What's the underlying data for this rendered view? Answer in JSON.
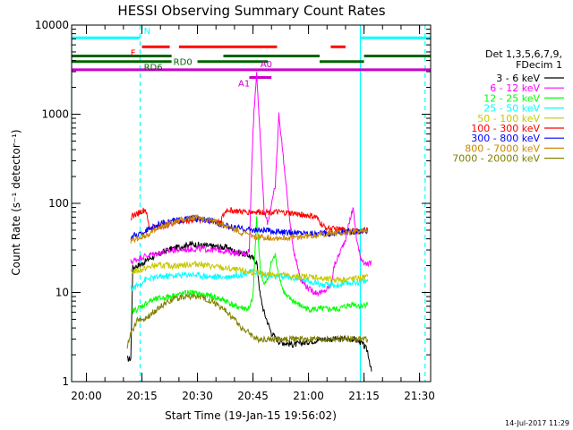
{
  "chart_data": {
    "type": "line",
    "title": "HESSI Observing Summary Count Rates",
    "xlabel": "Start Time (19-Jan-15 19:56:02)",
    "ylabel": "Count Rate (s⁻¹ detector⁻¹)",
    "yscale": "log",
    "ylim": [
      1,
      10000
    ],
    "xlim_minutes": [
      -4,
      93
    ],
    "y_ticks": [
      {
        "v": 1,
        "label": "1"
      },
      {
        "v": 10,
        "label": "10"
      },
      {
        "v": 100,
        "label": "100"
      },
      {
        "v": 1000,
        "label": "1000"
      },
      {
        "v": 10000,
        "label": "10000"
      }
    ],
    "x_ticks": [
      {
        "m": 0,
        "label": "20:00"
      },
      {
        "m": 15,
        "label": "20:15"
      },
      {
        "m": 30,
        "label": "20:30"
      },
      {
        "m": 45,
        "label": "20:45"
      },
      {
        "m": 60,
        "label": "21:00"
      },
      {
        "m": 75,
        "label": "21:15"
      },
      {
        "m": 90,
        "label": "21:30"
      }
    ],
    "timestamp": "14-Jul-2017 11:29",
    "legend": {
      "placement": "right",
      "title_lines": [
        "Det 1,3,5,6,7,9,",
        "FDecim 1"
      ]
    },
    "series": [
      {
        "name": "3 - 6 keV",
        "color": "#000000",
        "points": [
          [
            11,
            1.8
          ],
          [
            12,
            1.8
          ],
          [
            12.5,
            19
          ],
          [
            15,
            21
          ],
          [
            17,
            24
          ],
          [
            22,
            30
          ],
          [
            28,
            35
          ],
          [
            34,
            33
          ],
          [
            38,
            32
          ],
          [
            40,
            29
          ],
          [
            44,
            26
          ],
          [
            46,
            22
          ],
          [
            47,
            9
          ],
          [
            48,
            6
          ],
          [
            50,
            3.5
          ],
          [
            52,
            2.8
          ],
          [
            54,
            2.7
          ],
          [
            56,
            2.6
          ],
          [
            58,
            2.7
          ],
          [
            60,
            2.8
          ],
          [
            62,
            2.9
          ],
          [
            64,
            3.0
          ],
          [
            68,
            3.0
          ],
          [
            72,
            3.0
          ],
          [
            74,
            2.8
          ],
          [
            75,
            2.5
          ],
          [
            76,
            2.2
          ],
          [
            77,
            1.3
          ]
        ]
      },
      {
        "name": "6 - 12 keV",
        "color": "#ff00ff",
        "points": [
          [
            12,
            22
          ],
          [
            15,
            25
          ],
          [
            18,
            27
          ],
          [
            24,
            30
          ],
          [
            30,
            31
          ],
          [
            36,
            30
          ],
          [
            40,
            28
          ],
          [
            43,
            27
          ],
          [
            44,
            30
          ],
          [
            45,
            700
          ],
          [
            46,
            3000
          ],
          [
            47,
            500
          ],
          [
            48,
            80
          ],
          [
            49,
            60
          ],
          [
            50,
            100
          ],
          [
            51,
            150
          ],
          [
            52,
            1000
          ],
          [
            53,
            400
          ],
          [
            54,
            150
          ],
          [
            55,
            60
          ],
          [
            56,
            30
          ],
          [
            57,
            20
          ],
          [
            58,
            14
          ],
          [
            60,
            11
          ],
          [
            62,
            10
          ],
          [
            64,
            10
          ],
          [
            66,
            12
          ],
          [
            67,
            20
          ],
          [
            68,
            25
          ],
          [
            70,
            40
          ],
          [
            72,
            90
          ],
          [
            73,
            40
          ],
          [
            74,
            25
          ],
          [
            75,
            22
          ],
          [
            76,
            20
          ],
          [
            77,
            22
          ]
        ]
      },
      {
        "name": "12 - 25 keV",
        "color": "#00ff00",
        "points": [
          [
            12,
            6
          ],
          [
            15,
            7
          ],
          [
            17,
            8
          ],
          [
            22,
            9
          ],
          [
            28,
            10
          ],
          [
            34,
            9
          ],
          [
            38,
            8
          ],
          [
            40,
            7
          ],
          [
            44,
            6.5
          ],
          [
            45,
            9
          ],
          [
            46,
            70
          ],
          [
            47,
            18
          ],
          [
            48,
            12
          ],
          [
            49,
            14
          ],
          [
            50,
            22
          ],
          [
            51,
            26
          ],
          [
            52,
            16
          ],
          [
            53,
            11
          ],
          [
            54,
            9
          ],
          [
            56,
            8
          ],
          [
            58,
            7
          ],
          [
            60,
            6.5
          ],
          [
            64,
            6.5
          ],
          [
            68,
            6.5
          ],
          [
            72,
            7.5
          ],
          [
            74,
            7
          ],
          [
            76,
            7.5
          ]
        ]
      },
      {
        "name": "25 - 50 keV",
        "color": "#00ffff",
        "points": [
          [
            12,
            11
          ],
          [
            14,
            12
          ],
          [
            16,
            14
          ],
          [
            20,
            15
          ],
          [
            28,
            16
          ],
          [
            34,
            15
          ],
          [
            38,
            15
          ],
          [
            42,
            16
          ],
          [
            44,
            17
          ],
          [
            46,
            17
          ],
          [
            48,
            16
          ],
          [
            50,
            15
          ],
          [
            54,
            15
          ],
          [
            58,
            14
          ],
          [
            62,
            13
          ],
          [
            64,
            12
          ],
          [
            68,
            12
          ],
          [
            72,
            13
          ],
          [
            74,
            13
          ],
          [
            76,
            13.5
          ]
        ]
      },
      {
        "name": "50 - 100 keV",
        "color": "#c8c800",
        "points": [
          [
            12,
            17
          ],
          [
            15,
            18
          ],
          [
            18,
            20
          ],
          [
            24,
            20
          ],
          [
            30,
            21
          ],
          [
            36,
            19
          ],
          [
            40,
            18
          ],
          [
            44,
            17
          ],
          [
            48,
            16
          ],
          [
            52,
            16
          ],
          [
            56,
            15
          ],
          [
            60,
            15
          ],
          [
            62,
            15
          ],
          [
            64,
            14
          ],
          [
            66,
            14
          ],
          [
            70,
            14
          ],
          [
            74,
            14.5
          ],
          [
            76,
            15
          ]
        ]
      },
      {
        "name": "100 - 300 keV",
        "color": "#ff0000",
        "points": [
          [
            12,
            70
          ],
          [
            14,
            78
          ],
          [
            16,
            85
          ],
          [
            17,
            52
          ],
          [
            20,
            55
          ],
          [
            25,
            62
          ],
          [
            30,
            66
          ],
          [
            36,
            62
          ],
          [
            38,
            85
          ],
          [
            42,
            80
          ],
          [
            46,
            80
          ],
          [
            50,
            80
          ],
          [
            54,
            78
          ],
          [
            58,
            75
          ],
          [
            62,
            70
          ],
          [
            64,
            55
          ],
          [
            66,
            52
          ],
          [
            70,
            50
          ],
          [
            74,
            48
          ],
          [
            76,
            52
          ]
        ]
      },
      {
        "name": "300 - 800 keV",
        "color": "#0000ff",
        "points": [
          [
            12,
            42
          ],
          [
            15,
            46
          ],
          [
            18,
            55
          ],
          [
            22,
            62
          ],
          [
            28,
            68
          ],
          [
            34,
            64
          ],
          [
            38,
            55
          ],
          [
            42,
            52
          ],
          [
            46,
            50
          ],
          [
            50,
            49
          ],
          [
            54,
            47
          ],
          [
            58,
            47
          ],
          [
            62,
            46
          ],
          [
            66,
            46
          ],
          [
            70,
            48
          ],
          [
            74,
            49
          ],
          [
            76,
            50
          ]
        ]
      },
      {
        "name": "800 - 7000 keV",
        "color": "#cc8800",
        "points": [
          [
            12,
            38
          ],
          [
            15,
            42
          ],
          [
            18,
            48
          ],
          [
            22,
            58
          ],
          [
            26,
            66
          ],
          [
            30,
            70
          ],
          [
            34,
            64
          ],
          [
            38,
            55
          ],
          [
            42,
            47
          ],
          [
            46,
            42
          ],
          [
            50,
            41
          ],
          [
            54,
            41
          ],
          [
            58,
            42
          ],
          [
            62,
            44
          ],
          [
            66,
            46
          ],
          [
            70,
            47
          ],
          [
            74,
            48
          ],
          [
            76,
            50
          ]
        ]
      },
      {
        "name": "7000 - 20000 keV",
        "color": "#808000",
        "points": [
          [
            11,
            2.5
          ],
          [
            12,
            3.5
          ],
          [
            14,
            5
          ],
          [
            16,
            5
          ],
          [
            18,
            6
          ],
          [
            22,
            8
          ],
          [
            26,
            9
          ],
          [
            30,
            9
          ],
          [
            34,
            8
          ],
          [
            38,
            6
          ],
          [
            40,
            5
          ],
          [
            42,
            4
          ],
          [
            44,
            3.5
          ],
          [
            46,
            3
          ],
          [
            48,
            3
          ],
          [
            52,
            3
          ],
          [
            56,
            3
          ],
          [
            60,
            3
          ],
          [
            64,
            3
          ],
          [
            68,
            3
          ],
          [
            72,
            3
          ],
          [
            74,
            3
          ],
          [
            76,
            3
          ]
        ]
      }
    ],
    "flag_bars": [
      {
        "label": "N",
        "color": "#00ffff",
        "y": 7200,
        "segments": [
          [
            -4,
            14.5
          ],
          [
            74,
            93
          ]
        ]
      },
      {
        "label": "F",
        "color": "#ff0000",
        "y": 5700,
        "segments": [
          [
            15,
            22.5
          ],
          [
            25,
            51.5
          ],
          [
            66,
            70
          ]
        ]
      },
      {
        "label": "RD0",
        "color": "#006400",
        "y": 4500,
        "segments": [
          [
            -4,
            23
          ],
          [
            37,
            63
          ],
          [
            75,
            93
          ]
        ]
      },
      {
        "label": "RD6",
        "color": "#006400",
        "y": 3900,
        "segments": [
          [
            -4,
            23
          ],
          [
            30,
            49
          ],
          [
            63,
            75
          ]
        ]
      },
      {
        "label": "A0",
        "color": "#c800c8",
        "y": 3150,
        "segments": [
          [
            -4,
            93
          ]
        ]
      },
      {
        "label": "A1",
        "color": "#c800c8",
        "y": 2580,
        "segments": [
          [
            44,
            50
          ]
        ]
      }
    ],
    "vertical_lines": [
      {
        "m": -4,
        "color": "#00ffff",
        "style": "solid"
      },
      {
        "m": 14.5,
        "color": "#00ffff",
        "style": "dashed"
      },
      {
        "m": 74,
        "color": "#00ffff",
        "style": "solid"
      },
      {
        "m": 91.5,
        "color": "#00ffff",
        "style": "dashed"
      }
    ]
  }
}
